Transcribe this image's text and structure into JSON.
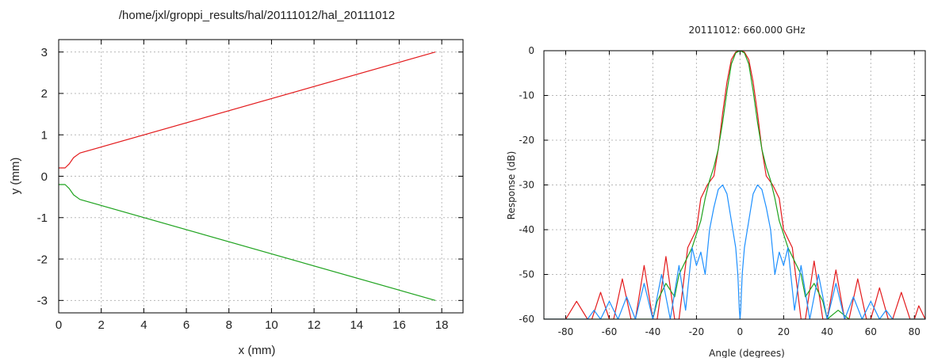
{
  "chart_data": [
    {
      "type": "line",
      "title": "/home/jxl/groppi_results/hal/20111012/hal_20111012",
      "xlabel": "x (mm)",
      "ylabel": "y (mm)",
      "xlim": [
        0,
        19
      ],
      "ylim": [
        -3.3,
        3.3
      ],
      "xticks": [
        0,
        2,
        4,
        6,
        8,
        10,
        12,
        14,
        16,
        18
      ],
      "yticks": [
        -3,
        -2,
        -1,
        0,
        1,
        2,
        3
      ],
      "grid": true,
      "series": [
        {
          "color": "#e31a1c",
          "x": [
            0,
            0.3,
            0.5,
            0.7,
            1.0,
            17.7
          ],
          "y": [
            0.2,
            0.2,
            0.3,
            0.45,
            0.56,
            3.0
          ]
        },
        {
          "color": "#1fa31f",
          "x": [
            0,
            0.3,
            0.5,
            0.7,
            1.0,
            17.7
          ],
          "y": [
            -0.2,
            -0.2,
            -0.3,
            -0.45,
            -0.56,
            -3.0
          ]
        }
      ]
    },
    {
      "type": "line",
      "title": "20111012: 660.000 GHz",
      "xlabel": "Angle (degrees)",
      "ylabel": "Response (dB)",
      "xlim": [
        -90,
        85
      ],
      "ylim": [
        -60,
        0
      ],
      "xticks": [
        -80,
        -60,
        -40,
        -20,
        0,
        20,
        40,
        60,
        80
      ],
      "yticks": [
        0,
        -10,
        -20,
        -30,
        -40,
        -50,
        -60
      ],
      "grid": true,
      "series": [
        {
          "color": "#e31a1c",
          "x": [
            -90,
            -80,
            -75,
            -70,
            -68,
            -64,
            -60,
            -58,
            -54,
            -50,
            -48,
            -44,
            -40,
            -38,
            -34,
            -30,
            -28,
            -24,
            -20,
            -18,
            -15,
            -12,
            -10,
            -8,
            -6,
            -4,
            -2,
            0,
            2,
            4,
            6,
            8,
            10,
            12,
            15,
            18,
            20,
            24,
            28,
            30,
            34,
            38,
            40,
            44,
            48,
            50,
            54,
            58,
            60,
            64,
            68,
            70,
            74,
            78,
            80,
            82,
            85
          ],
          "y": [
            -60,
            -60,
            -56,
            -60,
            -60,
            -54,
            -60,
            -60,
            -51,
            -60,
            -60,
            -48,
            -60,
            -60,
            -46,
            -60,
            -60,
            -44,
            -40,
            -33,
            -30,
            -28,
            -22,
            -14,
            -7,
            -2,
            -0.3,
            0,
            -0.3,
            -2,
            -7,
            -14,
            -22,
            -28,
            -30,
            -33,
            -40,
            -44,
            -60,
            -60,
            -47,
            -60,
            -60,
            -49,
            -60,
            -60,
            -51,
            -60,
            -60,
            -53,
            -60,
            -60,
            -54,
            -60,
            -60,
            -57,
            -60
          ]
        },
        {
          "color": "#1fa31f",
          "x": [
            -90,
            -40,
            -38,
            -34,
            -30,
            -28,
            -24,
            -22,
            -20,
            -18,
            -16,
            -14,
            -12,
            -10,
            -8,
            -6,
            -4,
            -2,
            0,
            2,
            4,
            6,
            8,
            10,
            12,
            14,
            16,
            18,
            20,
            22,
            24,
            28,
            30,
            34,
            38,
            40,
            45,
            50,
            85
          ],
          "y": [
            -60,
            -60,
            -56,
            -52,
            -55,
            -50,
            -46,
            -44,
            -41,
            -38,
            -33,
            -29,
            -26,
            -22,
            -16,
            -9,
            -3,
            -0.5,
            0,
            -0.5,
            -3,
            -9,
            -16,
            -22,
            -26,
            -29,
            -33,
            -38,
            -41,
            -44,
            -46,
            -50,
            -55,
            -52,
            -56,
            -60,
            -58,
            -60,
            -60
          ]
        },
        {
          "color": "#1e90ff",
          "x": [
            -90,
            -70,
            -67,
            -64,
            -60,
            -56,
            -52,
            -48,
            -44,
            -40,
            -36,
            -32,
            -28,
            -25,
            -22,
            -20,
            -18,
            -16,
            -14,
            -12,
            -10,
            -8,
            -6,
            -4,
            -2,
            -1,
            -0.3,
            0,
            0.3,
            1,
            2,
            4,
            6,
            8,
            10,
            12,
            14,
            16,
            18,
            20,
            22,
            25,
            28,
            32,
            36,
            40,
            44,
            48,
            52,
            56,
            60,
            64,
            67,
            70,
            85
          ],
          "y": [
            -60,
            -60,
            -58,
            -60,
            -56,
            -60,
            -55,
            -60,
            -52,
            -60,
            -50,
            -60,
            -48,
            -58,
            -44,
            -48,
            -45,
            -50,
            -40,
            -35,
            -31,
            -30,
            -32,
            -38,
            -44,
            -50,
            -58,
            -60,
            -58,
            -50,
            -44,
            -38,
            -32,
            -30,
            -31,
            -35,
            -40,
            -50,
            -45,
            -48,
            -44,
            -58,
            -48,
            -60,
            -50,
            -60,
            -52,
            -60,
            -55,
            -60,
            -56,
            -60,
            -58,
            -60,
            -60
          ]
        }
      ]
    }
  ]
}
